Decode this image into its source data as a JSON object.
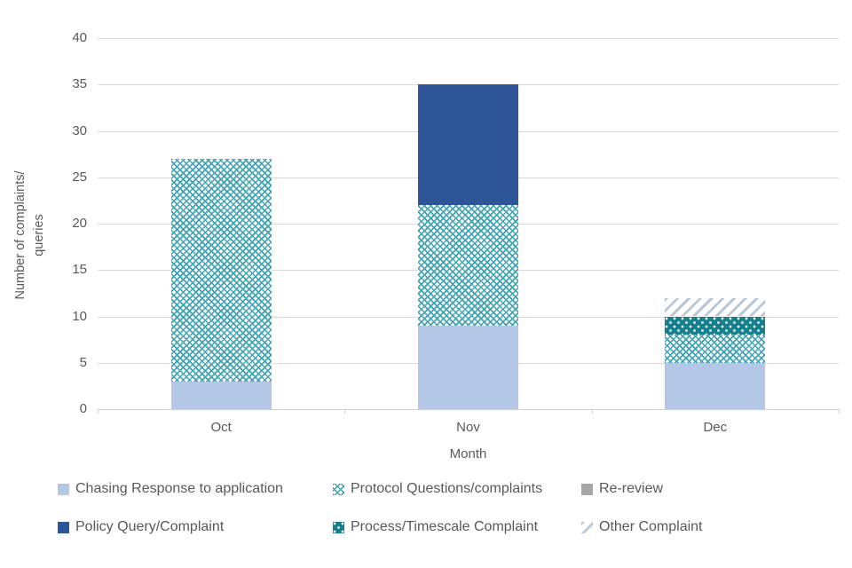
{
  "chart_data": {
    "type": "bar",
    "stacked": true,
    "categories": [
      "Oct",
      "Nov",
      "Dec"
    ],
    "series": [
      {
        "name": "Chasing Response to application",
        "values": [
          3,
          9,
          5
        ],
        "color": "#b4c7e7",
        "pattern": "solid"
      },
      {
        "name": "Protocol Questions/complaints",
        "values": [
          24,
          13,
          3
        ],
        "color": "#3fa3b4",
        "pattern": "crosshatch"
      },
      {
        "name": "Re-review",
        "values": [
          0,
          0,
          0
        ],
        "color": "#a6a6a6",
        "pattern": "solid"
      },
      {
        "name": "Policy Query/Complaint",
        "values": [
          0,
          13,
          0
        ],
        "color": "#2e5597",
        "pattern": "solid"
      },
      {
        "name": "Process/Timescale Complaint",
        "values": [
          0,
          0,
          2
        ],
        "color": "#15808e",
        "pattern": "dots"
      },
      {
        "name": "Other Complaint",
        "values": [
          0,
          0,
          2
        ],
        "color": "#b9c7da",
        "pattern": "diagonal"
      }
    ],
    "xlabel": "Month",
    "ylabel": "Number of complaints/ queries",
    "ylabel_lines": [
      "Number of complaints/",
      "queries"
    ],
    "ylim": [
      0,
      40
    ],
    "ytick_step": 5,
    "grid": true,
    "legend_position": "bottom",
    "legend_rows": [
      [
        "Chasing Response to application",
        "Protocol Questions/complaints",
        "Re-review"
      ],
      [
        "Policy Query/Complaint",
        "Process/Timescale Complaint",
        "Other Complaint"
      ]
    ]
  },
  "colors": {
    "gridline": "#d9d9d9",
    "axis_text": "#595959",
    "background": "#ffffff"
  }
}
